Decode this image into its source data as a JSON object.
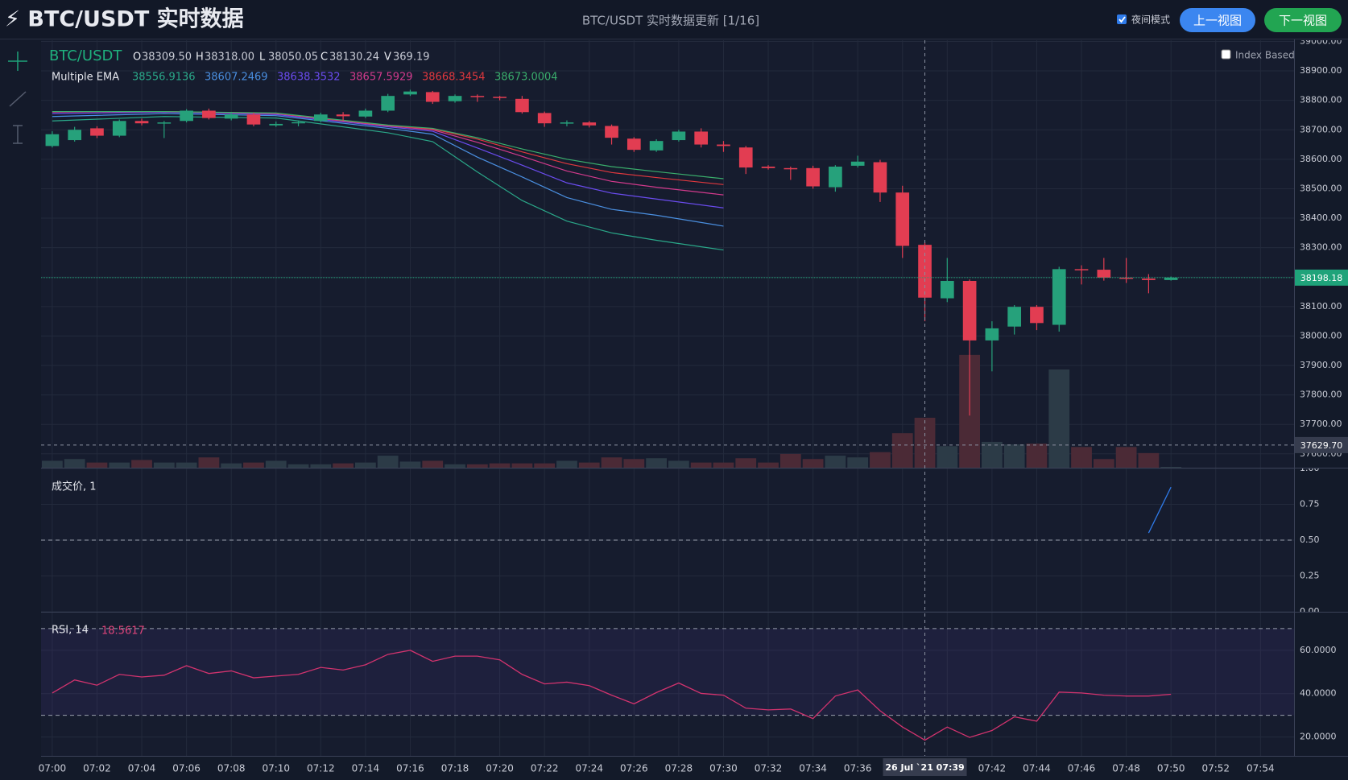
{
  "header": {
    "title": "⚡ BTC/USDT 实时数据",
    "status": "BTC/USDT 实时数据更新 [1/16]",
    "night_mode": "夜间模式",
    "prev": "上一视图",
    "next": "下一视图"
  },
  "index_based": "Index Based",
  "chart_data": [
    {
      "type": "candlestick",
      "symbol": "BTC/USDT",
      "x": [
        420,
        421,
        422,
        423,
        424,
        425,
        426,
        427,
        428,
        429,
        430,
        431,
        432,
        433,
        434,
        435,
        436,
        437,
        438,
        439,
        440,
        441,
        442,
        443,
        444,
        445,
        446,
        447,
        448,
        449,
        450,
        451,
        452,
        453,
        454,
        455,
        456,
        457,
        458,
        459,
        460,
        461,
        462,
        463,
        464,
        465,
        466,
        467,
        468,
        469,
        470
      ],
      "open": [
        38645,
        38665,
        38705,
        38680,
        38730,
        38722,
        38730,
        38765,
        38738,
        38752,
        38715,
        38722,
        38730,
        38752,
        38745,
        38765,
        38820,
        38828,
        38797,
        38815,
        38812,
        38805,
        38757,
        38722,
        38725,
        38713,
        38670,
        38630,
        38665,
        38694,
        38650,
        38640,
        38575,
        38570,
        38570,
        38505,
        38578,
        38590,
        38487,
        38309.5,
        38128,
        38187,
        37985,
        38032,
        38099,
        38038,
        38227,
        38225,
        38198,
        38195,
        38190
      ],
      "high": [
        38695,
        38710,
        38712,
        38735,
        38738,
        38730,
        38770,
        38772,
        38758,
        38758,
        38728,
        38732,
        38758,
        38760,
        38772,
        38822,
        38836,
        38832,
        38820,
        38820,
        38815,
        38815,
        38762,
        38732,
        38730,
        38718,
        38675,
        38668,
        38700,
        38705,
        38662,
        38645,
        38580,
        38575,
        38578,
        38580,
        38612,
        38598,
        38510,
        38318,
        38265,
        38192,
        38050,
        38105,
        38105,
        38235,
        38240,
        38265,
        38265,
        38210,
        38202
      ],
      "low": [
        38640,
        38660,
        38672,
        38675,
        38715,
        38672,
        38725,
        38735,
        38732,
        38712,
        38710,
        38712,
        38725,
        38730,
        38740,
        38760,
        38815,
        38788,
        38792,
        38795,
        38800,
        38755,
        38710,
        38712,
        38708,
        38650,
        38625,
        38625,
        38660,
        38640,
        38625,
        38550,
        38565,
        38530,
        38500,
        38490,
        38572,
        38455,
        38265,
        38050.05,
        38115,
        37730,
        37880,
        38005,
        38020,
        38015,
        38175,
        38188,
        38180,
        38145,
        38188
      ],
      "close": [
        38685,
        38700,
        38680,
        38730,
        38722,
        38725,
        38765,
        38740,
        38752,
        38718,
        38720,
        38726,
        38752,
        38746,
        38765,
        38815,
        38830,
        38795,
        38815,
        38812,
        38808,
        38760,
        38722,
        38725,
        38715,
        38673,
        38632,
        38662,
        38694,
        38650,
        38645,
        38572,
        38570,
        38568,
        38508,
        38575,
        38592,
        38487,
        38306,
        38130.24,
        38187,
        37985,
        38026,
        38099,
        38044,
        38227,
        38224,
        38198,
        38194,
        38190,
        38198.18
      ],
      "volume": [
        51,
        64,
        38,
        38,
        57,
        38,
        38,
        76,
        32,
        38,
        51,
        25,
        25,
        32,
        38,
        89,
        45,
        51,
        25,
        25,
        32,
        32,
        32,
        51,
        38,
        76,
        64,
        70,
        51,
        38,
        38,
        70,
        38,
        102,
        64,
        89,
        76,
        115,
        255,
        369.19,
        159,
        834,
        191,
        172,
        178,
        726,
        153,
        64,
        153,
        108,
        6
      ],
      "up_color": "#26a17b",
      "down_color": "#e23d52",
      "volume_up_color": "#2c3b47",
      "volume_down_color": "#4b2a36",
      "xlim": [
        419.5,
        475.5
      ],
      "xticks": [
        {
          "value": 420,
          "label": "07:00"
        },
        {
          "value": 422,
          "label": "07:02"
        },
        {
          "value": 424,
          "label": "07:04"
        },
        {
          "value": 426,
          "label": "07:06"
        },
        {
          "value": 428,
          "label": "07:08"
        },
        {
          "value": 430,
          "label": "07:10"
        },
        {
          "value": 432,
          "label": "07:12"
        },
        {
          "value": 434,
          "label": "07:14"
        },
        {
          "value": 436,
          "label": "07:16"
        },
        {
          "value": 438,
          "label": "07:18"
        },
        {
          "value": 440,
          "label": "07:20"
        },
        {
          "value": 442,
          "label": "07:22"
        },
        {
          "value": 444,
          "label": "07:24"
        },
        {
          "value": 446,
          "label": "07:26"
        },
        {
          "value": 448,
          "label": "07:28"
        },
        {
          "value": 450,
          "label": "07:30"
        },
        {
          "value": 452,
          "label": "07:32"
        },
        {
          "value": 454,
          "label": "07:34"
        },
        {
          "value": 456,
          "label": "07:36"
        },
        {
          "value": 458,
          "label": "07:38"
        },
        {
          "value": 460,
          "label": "07:40"
        },
        {
          "value": 462,
          "label": "07:42"
        },
        {
          "value": 464,
          "label": "07:44"
        },
        {
          "value": 466,
          "label": "07:46"
        },
        {
          "value": 468,
          "label": "07:48"
        },
        {
          "value": 470,
          "label": "07:50"
        },
        {
          "value": 472,
          "label": "07:52"
        },
        {
          "value": 474,
          "label": "07:54"
        }
      ],
      "ylim": [
        37553,
        39004
      ],
      "yticks": [
        {
          "value": 37600,
          "label": "37600.00"
        },
        {
          "value": 37700,
          "label": "37700.00"
        },
        {
          "value": 37800,
          "label": "37800.00"
        },
        {
          "value": 37900,
          "label": "37900.00"
        },
        {
          "value": 38000,
          "label": "38000.00"
        },
        {
          "value": 38100,
          "label": "38100.00"
        },
        {
          "value": 38200,
          "label": "38200.00"
        },
        {
          "value": 38300,
          "label": "38300.00"
        },
        {
          "value": 38400,
          "label": "38400.00"
        },
        {
          "value": 38500,
          "label": "38500.00"
        },
        {
          "value": 38600,
          "label": "38600.00"
        },
        {
          "value": 38700,
          "label": "38700.00"
        },
        {
          "value": 38800,
          "label": "38800.00"
        },
        {
          "value": 38900,
          "label": "38900.00"
        },
        {
          "value": 39000,
          "label": "39000.00"
        }
      ],
      "y2lim": [
        0,
        3160
      ],
      "grid": true,
      "last_price": 38198.18,
      "last_price_color": "#1fa37a",
      "crosshair": {
        "x": 459,
        "time_label": "26 Jul `21 07:39",
        "price": {
          "value": 37629.7,
          "label": "37629.70"
        },
        "ohlcv_labels": [
          "O",
          "H",
          "L",
          "C",
          "V"
        ],
        "ohlcv_values": [
          "38309.50",
          "38318.00",
          "38050.05",
          "38130.24",
          "369.19"
        ]
      },
      "ema": {
        "name": "Multiple EMA",
        "series": [
          {
            "color": "#2aa889",
            "x": [
              420,
              425,
              430,
              435,
              437,
              439,
              441,
              443,
              445,
              447,
              450
            ],
            "values": [
              38730,
              38745,
              38740,
              38690,
              38660,
              38556.9136,
              38460,
              38390,
              38350,
              38325,
              38292
            ]
          },
          {
            "color": "#4a8fe0",
            "x": [
              420,
              425,
              430,
              435,
              437,
              439,
              441,
              443,
              445,
              447,
              450
            ],
            "values": [
              38745,
              38755,
              38748,
              38705,
              38685,
              38607.2469,
              38540,
              38470,
              38430,
              38410,
              38373
            ]
          },
          {
            "color": "#6b4cf0",
            "x": [
              420,
              425,
              430,
              435,
              437,
              439,
              441,
              443,
              445,
              447,
              450
            ],
            "values": [
              38755,
              38760,
              38752,
              38710,
              38695,
              38638.3532,
              38580,
              38520,
              38485,
              38465,
              38435
            ]
          },
          {
            "color": "#d23a8c",
            "x": [
              420,
              425,
              430,
              435,
              437,
              439,
              441,
              443,
              445,
              447,
              450
            ],
            "values": [
              38760,
              38762,
              38755,
              38713,
              38700,
              38657.5929,
              38610,
              38560,
              38525,
              38505,
              38479
            ]
          },
          {
            "color": "#e0383e",
            "x": [
              420,
              425,
              430,
              435,
              437,
              439,
              441,
              443,
              445,
              447,
              450
            ],
            "values": [
              38762,
              38762,
              38756,
              38715,
              38703,
              38668.3454,
              38625,
              38585,
              38555,
              38538,
              38514
            ]
          },
          {
            "color": "#3aae6c",
            "x": [
              420,
              425,
              430,
              435,
              437,
              439,
              441,
              443,
              445,
              447,
              450
            ],
            "values": [
              38762,
              38762,
              38757,
              38716,
              38705,
              38673.0004,
              38635,
              38600,
              38575,
              38558,
              38534
            ]
          }
        ]
      }
    },
    {
      "type": "line",
      "title": "成交价, 1",
      "x": [
        469,
        470
      ],
      "values": [
        0.55,
        0.87
      ],
      "color": "#2f7bea",
      "ylim": [
        0,
        1
      ],
      "ref_line": 0.5,
      "yticks": [
        {
          "value": 0,
          "label": "0.00"
        },
        {
          "value": 0.25,
          "label": "0.25"
        },
        {
          "value": 0.5,
          "label": "0.50"
        },
        {
          "value": 0.75,
          "label": "0.75"
        },
        {
          "value": 1,
          "label": "1.00"
        }
      ]
    },
    {
      "type": "line",
      "title": "RSI, 14",
      "color": "#d2336e",
      "band": [
        30,
        70
      ],
      "x": [
        420,
        421,
        422,
        423,
        424,
        425,
        426,
        427,
        428,
        429,
        430,
        431,
        432,
        433,
        434,
        435,
        436,
        437,
        438,
        439,
        440,
        441,
        442,
        443,
        444,
        445,
        446,
        447,
        448,
        449,
        450,
        451,
        452,
        453,
        454,
        455,
        456,
        457,
        458,
        459,
        460,
        461,
        462,
        463,
        464,
        465,
        466,
        467,
        468,
        469,
        470
      ],
      "values": [
        40.3,
        46.3,
        43.9,
        48.9,
        47.7,
        48.5,
        52.9,
        49.3,
        50.5,
        47.3,
        48.1,
        48.9,
        52.1,
        50.9,
        53.3,
        58.1,
        60,
        54.9,
        57.3,
        57.3,
        55.6,
        48.9,
        44.5,
        45.3,
        43.7,
        39.3,
        35.3,
        40.5,
        44.9,
        40.1,
        39.3,
        33.3,
        32.5,
        32.9,
        28.5,
        38.9,
        41.7,
        32.1,
        24.6,
        18.5617,
        24.6,
        19.8,
        23,
        29.3,
        27.3,
        40.7,
        40.3,
        39.3,
        38.9,
        38.9,
        39.7
      ],
      "ylim": [
        11.3,
        77.4
      ],
      "yticks": [
        {
          "value": 20,
          "label": "20.0000"
        },
        {
          "value": 40,
          "label": "40.0000"
        },
        {
          "value": 60,
          "label": "60.0000"
        }
      ]
    }
  ]
}
